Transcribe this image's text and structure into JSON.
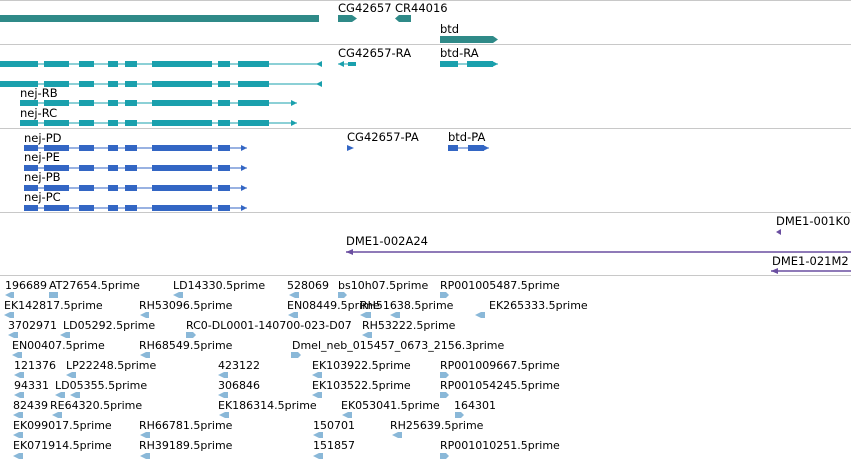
{
  "gene_track": {
    "labels": [
      "CG42657",
      "CR44016",
      "btd"
    ]
  },
  "transcript_track": {
    "labels": [
      "CG42657-RA",
      "btd-RA",
      "nej-RB",
      "nej-RC"
    ]
  },
  "protein_track": {
    "labels": [
      "nej-PD",
      "nej-PE",
      "nej-PB",
      "nej-PC",
      "CG42657-PA",
      "btd-PA"
    ]
  },
  "clone_track": {
    "labels": [
      "DME1-001K0",
      "DME1-002A24",
      "DME1-021M2"
    ]
  },
  "est_track": {
    "labels": [
      "196689",
      "AT27654.5prime",
      "LD14330.5prime",
      "528069",
      "bs10h07.5prime",
      "RP001005487.5prime",
      "EK142817.5prime",
      "RH53096.5prime",
      "EN08449.5prime",
      "RH51638.5prime",
      "EK265333.5prime",
      "3702971",
      "LD05292.5prime",
      "RC0-DL0001-140700-023-D07",
      "RH53222.5prime",
      "EN00407.5prime",
      "RH68549.5prime",
      "Dmel_neb_015457_0673_2156.3prime",
      "121376",
      "LP22248.5prime",
      "423122",
      "EK103922.5prime",
      "RP001009667.5prime",
      "94331",
      "LD05355.5prime",
      "306846",
      "EK103522.5prime",
      "RP001054245.5prime",
      "82439",
      "RE64320.5prime",
      "EK186314.5prime",
      "EK053041.5prime",
      "164301",
      "EK099017.5prime",
      "RH66781.5prime",
      "150701",
      "RH25639.5prime",
      "EK071914.5prime",
      "RH39189.5prime",
      "151857",
      "RP001010251.5prime"
    ]
  },
  "colors": {
    "gene": "#2f8a88",
    "transcript": "#1aa0ad",
    "protein": "#3366c4",
    "clone": "#6a4ea0",
    "est": "#8ab8d8",
    "separator": "#c8c8c8"
  }
}
